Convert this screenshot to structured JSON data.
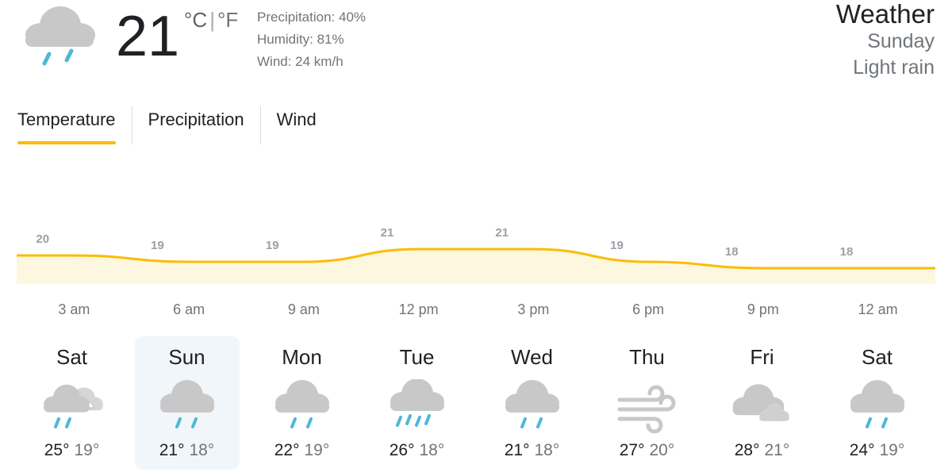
{
  "current": {
    "icon": "rain-cloud-icon",
    "temp": "21",
    "unit_c": "°C",
    "unit_sep": "|",
    "unit_f": "°F",
    "precipitation": "Precipitation: 40%",
    "humidity": "Humidity: 81%",
    "wind": "Wind: 24 km/h"
  },
  "header": {
    "title": "Weather",
    "day": "Sunday",
    "condition": "Light rain"
  },
  "tabs": [
    {
      "label": "Temperature",
      "active": true
    },
    {
      "label": "Precipitation",
      "active": false
    },
    {
      "label": "Wind",
      "active": false
    }
  ],
  "colors": {
    "accent": "#fbbc04",
    "chart_fill": "#fef7e0",
    "rain": "#4fb8d8",
    "cloud": "#c8c8c8"
  },
  "chart_data": {
    "type": "area",
    "x": [
      "3 am",
      "6 am",
      "9 am",
      "12 pm",
      "3 pm",
      "6 pm",
      "9 pm",
      "12 am"
    ],
    "values": [
      20,
      19,
      19,
      21,
      21,
      19,
      18,
      18
    ],
    "labels": [
      "20",
      "19",
      "19",
      "21",
      "21",
      "19",
      "18",
      "18"
    ]
  },
  "forecast": [
    {
      "day": "Sat",
      "icon": "rain-partly-cloudy-icon",
      "high": "25°",
      "low": "19°",
      "active": false
    },
    {
      "day": "Sun",
      "icon": "light-rain-icon",
      "high": "21°",
      "low": "18°",
      "active": true
    },
    {
      "day": "Mon",
      "icon": "light-rain-icon",
      "high": "22°",
      "low": "19°",
      "active": false
    },
    {
      "day": "Tue",
      "icon": "rain-showers-icon",
      "high": "26°",
      "low": "18°",
      "active": false
    },
    {
      "day": "Wed",
      "icon": "light-rain-icon",
      "high": "21°",
      "low": "18°",
      "active": false
    },
    {
      "day": "Thu",
      "icon": "wind-icon",
      "high": "27°",
      "low": "20°",
      "active": false
    },
    {
      "day": "Fri",
      "icon": "cloudy-icon",
      "high": "28°",
      "low": "21°",
      "active": false
    },
    {
      "day": "Sat",
      "icon": "light-rain-icon",
      "high": "24°",
      "low": "19°",
      "active": false
    }
  ]
}
